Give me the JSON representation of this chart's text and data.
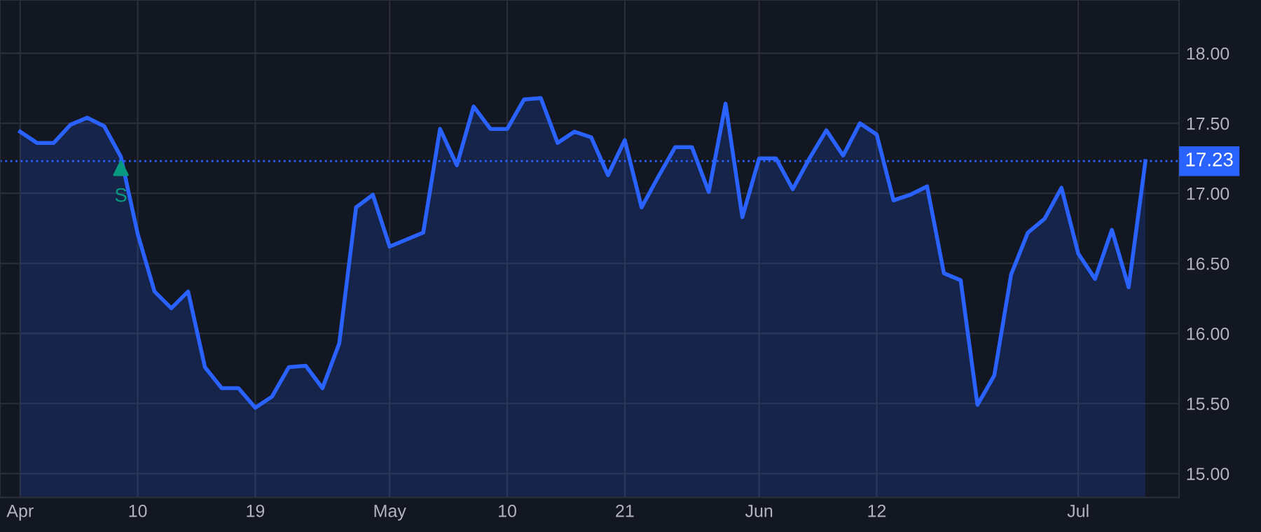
{
  "chart_data": {
    "type": "area",
    "categories": [
      "Apr",
      null,
      null,
      null,
      null,
      null,
      null,
      "10",
      null,
      null,
      null,
      null,
      null,
      null,
      "19",
      null,
      null,
      null,
      null,
      null,
      null,
      null,
      "May",
      null,
      null,
      null,
      null,
      null,
      null,
      "10",
      null,
      null,
      null,
      null,
      null,
      null,
      "21",
      null,
      null,
      null,
      null,
      null,
      null,
      null,
      "Jun",
      null,
      null,
      null,
      null,
      null,
      null,
      "12",
      null,
      null,
      null,
      null,
      null,
      null,
      null,
      null,
      null,
      null,
      null,
      "Jul",
      null,
      null,
      null,
      null
    ],
    "series": [
      {
        "color": "#2962ff",
        "values": [
          17.44,
          17.36,
          17.36,
          17.49,
          17.54,
          17.48,
          17.26,
          16.71,
          16.3,
          16.18,
          16.3,
          15.76,
          15.61,
          15.61,
          15.47,
          15.55,
          15.76,
          15.77,
          15.61,
          15.93,
          16.9,
          16.99,
          16.62,
          16.67,
          16.72,
          17.46,
          17.2,
          17.62,
          17.46,
          17.46,
          17.67,
          17.68,
          17.36,
          17.44,
          17.4,
          17.13,
          17.38,
          16.9,
          17.12,
          17.33,
          17.33,
          17.01,
          17.64,
          16.83,
          17.25,
          17.25,
          17.03,
          17.25,
          17.45,
          17.27,
          17.5,
          17.42,
          16.95,
          16.99,
          17.05,
          16.43,
          16.38,
          15.49,
          15.7,
          16.42,
          16.72,
          16.82,
          17.04,
          16.57,
          16.39,
          16.74,
          16.33,
          17.23
        ]
      },
      {
        "type": "scatter",
        "name": "S",
        "color": "#089981",
        "marker": "triangle",
        "values": [
          null,
          null,
          null,
          null,
          null,
          null,
          17.18,
          null,
          null,
          null,
          null,
          null,
          null,
          null,
          null,
          null,
          null,
          null,
          null,
          null,
          null,
          null,
          null,
          null,
          null,
          null,
          null,
          null,
          null,
          null,
          null,
          null,
          null,
          null,
          null,
          null,
          null,
          null,
          null,
          null,
          null,
          null,
          null,
          null,
          null,
          null,
          null,
          null,
          null,
          null,
          null,
          null,
          null,
          null,
          null,
          null,
          null,
          null,
          null,
          null,
          null,
          null,
          null,
          null,
          null,
          null,
          null,
          null
        ]
      }
    ],
    "ylim": [
      14.83,
      18.38
    ],
    "yticks": [
      {
        "value": 15,
        "label": "15.00"
      },
      {
        "value": 15.5,
        "label": "15.50"
      },
      {
        "value": 16,
        "label": "16.00"
      },
      {
        "value": 16.5,
        "label": "16.50"
      },
      {
        "value": 17,
        "label": "17.00"
      },
      {
        "value": 17.5,
        "label": "17.50"
      },
      {
        "value": 18,
        "label": "18.00"
      }
    ],
    "ref_lines": [
      {
        "axis": "y",
        "value": 17.23,
        "label": "17.23",
        "color": "#2962ff",
        "line_style": "dotted"
      }
    ],
    "grid": true,
    "legend": false
  }
}
